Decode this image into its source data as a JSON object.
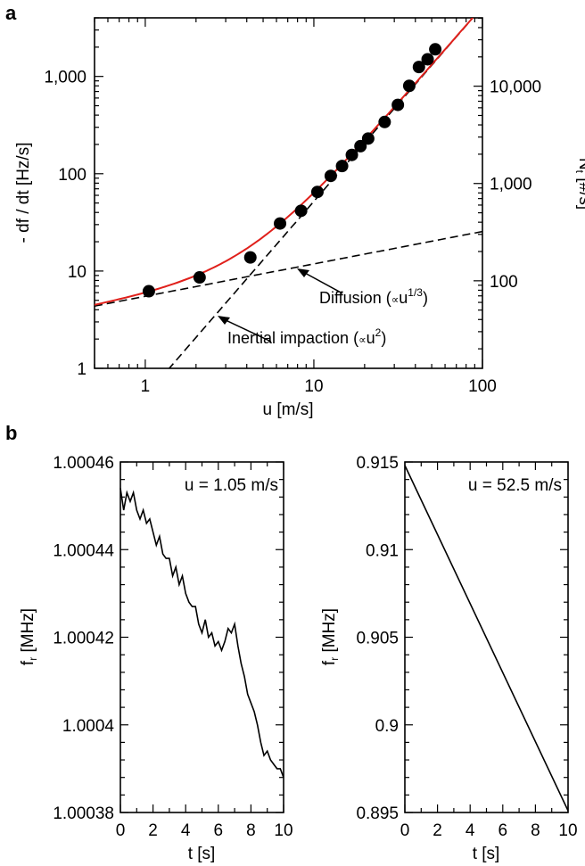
{
  "chart_data": [
    {
      "panel": "a",
      "type": "scatter",
      "xscale": "log",
      "yscale": "log",
      "xlim": [
        0.5,
        100
      ],
      "ylim": [
        1,
        4000
      ],
      "xlabel": "u [m/s]",
      "ylabel": "- df / dt [Hz/s]",
      "xticks": [
        {
          "value": 1,
          "label": "1"
        },
        {
          "value": 10,
          "label": "10"
        },
        {
          "value": 100,
          "label": "100"
        }
      ],
      "yticks": [
        {
          "value": 1,
          "label": "1"
        },
        {
          "value": 10,
          "label": "10"
        },
        {
          "value": 100,
          "label": "100"
        },
        {
          "value": 1000,
          "label": "1,000"
        }
      ],
      "y2label_main": "N",
      "y2label_sub": "t",
      "y2label_rest": " [#/s]",
      "y2ticks": [
        {
          "value": 100,
          "label": "100"
        },
        {
          "value": 1000,
          "label": "1,000"
        },
        {
          "value": 10000,
          "label": "10,000"
        }
      ],
      "y2_per_y": 12.6,
      "points": {
        "x": [
          1.05,
          2.1,
          4.2,
          6.3,
          8.4,
          10.5,
          12.6,
          14.7,
          16.8,
          18.9,
          21.0,
          26.3,
          31.5,
          36.8,
          42.0,
          47.3,
          52.5
        ],
        "y": [
          6.2,
          8.6,
          13.8,
          30.8,
          41.6,
          65,
          95,
          120,
          156,
          192,
          230,
          340,
          510,
          800,
          1250,
          1500,
          1900
        ]
      },
      "fit_color": "#e0201b",
      "diffusion": {
        "text": "Diffusion (",
        "prop": "∝",
        "var": "u",
        "exp": "1/3",
        "close": ")",
        "coef": 5.5,
        "power": 0.333
      },
      "inertial": {
        "text": "Inertial impaction (",
        "prop": "∝",
        "var": "u",
        "exp": "2",
        "close": ")",
        "coef": 0.52,
        "power": 2
      }
    },
    {
      "panel": "b",
      "type": "line",
      "title": "u = 1.05 m/s",
      "xlabel": "t [s]",
      "ylabel_main": "f",
      "ylabel_sub": "r",
      "ylabel_rest": " [MHz]",
      "xlim": [
        0,
        10
      ],
      "ylim": [
        1.00038,
        1.00046
      ],
      "xticks": [
        "0",
        "2",
        "4",
        "6",
        "8",
        "10"
      ],
      "yticks": [
        {
          "value": 1.00038,
          "label": "1.00038"
        },
        {
          "value": 1.0004,
          "label": "1.0004"
        },
        {
          "value": 1.00042,
          "label": "1.00042"
        },
        {
          "value": 1.00044,
          "label": "1.00044"
        },
        {
          "value": 1.00046,
          "label": "1.00046"
        }
      ],
      "x": [
        0,
        0.2,
        0.4,
        0.6,
        0.8,
        1.0,
        1.2,
        1.4,
        1.6,
        1.8,
        2.0,
        2.2,
        2.4,
        2.6,
        2.8,
        3.0,
        3.2,
        3.4,
        3.6,
        3.8,
        4.0,
        4.2,
        4.4,
        4.6,
        4.8,
        5.0,
        5.2,
        5.4,
        5.6,
        5.8,
        6.0,
        6.2,
        6.4,
        6.6,
        6.8,
        7.0,
        7.2,
        7.4,
        7.6,
        7.8,
        8.0,
        8.2,
        8.4,
        8.6,
        8.8,
        9.0,
        9.2,
        9.4,
        9.6,
        9.8,
        10.0
      ],
      "y": [
        1.000454,
        1.000449,
        1.000453,
        1.000451,
        1.000453,
        1.000449,
        1.000447,
        1.000449,
        1.000446,
        1.000447,
        1.000444,
        1.000441,
        1.000443,
        1.000439,
        1.000438,
        1.000438,
        1.000434,
        1.000436,
        1.000432,
        1.000434,
        1.00043,
        1.000428,
        1.000427,
        1.000427,
        1.000423,
        1.000421,
        1.000424,
        1.00042,
        1.000421,
        1.000418,
        1.000419,
        1.000417,
        1.000419,
        1.000422,
        1.000421,
        1.000423,
        1.000418,
        1.000414,
        1.000411,
        1.000407,
        1.000405,
        1.000403,
        1.0004,
        1.000396,
        1.000393,
        1.000394,
        1.000392,
        1.000391,
        1.00039,
        1.00039,
        1.000388
      ]
    },
    {
      "panel": "",
      "type": "line",
      "title": "u = 52.5 m/s",
      "xlabel": "t [s]",
      "ylabel_main": "f",
      "ylabel_sub": "r",
      "ylabel_rest": " [MHz]",
      "xlim": [
        0,
        10
      ],
      "ylim": [
        0.895,
        0.915
      ],
      "xticks": [
        "0",
        "2",
        "4",
        "6",
        "8",
        "10"
      ],
      "yticks": [
        {
          "value": 0.895,
          "label": "0.895"
        },
        {
          "value": 0.9,
          "label": "0.9"
        },
        {
          "value": 0.905,
          "label": "0.905"
        },
        {
          "value": 0.91,
          "label": "0.91"
        },
        {
          "value": 0.915,
          "label": "0.915"
        }
      ],
      "x": [
        0,
        10
      ],
      "y": [
        0.9148,
        0.8951
      ]
    }
  ]
}
